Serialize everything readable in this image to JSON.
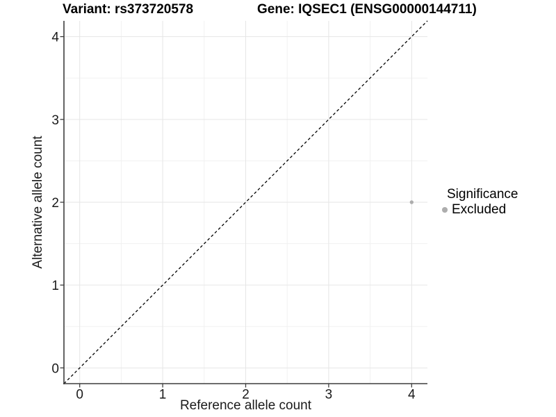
{
  "chart_data": {
    "type": "scatter",
    "title_left": "Variant: rs373720578",
    "title_right": "Gene: IQSEC1 (ENSG00000144711)",
    "xlabel": "Reference allele count",
    "ylabel": "Alternative allele count",
    "xlim": [
      -0.19,
      4.19
    ],
    "ylim": [
      -0.19,
      4.19
    ],
    "xticks": [
      0,
      1,
      2,
      3,
      4
    ],
    "yticks": [
      0,
      1,
      2,
      3,
      4
    ],
    "minor_ticks": [
      0.5,
      1.5,
      2.5,
      3.5
    ],
    "grid": "major and minor gridlines on white panel",
    "legend": {
      "title": "Significance",
      "position": "right",
      "items": [
        {
          "label": "Excluded",
          "color": "#adadad"
        }
      ]
    },
    "series": [
      {
        "name": "Excluded",
        "color": "#adadad",
        "points": [
          {
            "x": 4,
            "y": 2
          }
        ]
      }
    ],
    "reference_line": {
      "type": "identity y=x",
      "style": "dashed",
      "color": "#000000"
    },
    "colors": {
      "axis_line": "#3d3d3d",
      "tick_text": "#1a1a1a",
      "grid_major": "#e6e6e6",
      "grid_minor": "#f1f1f1",
      "background": "#ffffff"
    }
  }
}
